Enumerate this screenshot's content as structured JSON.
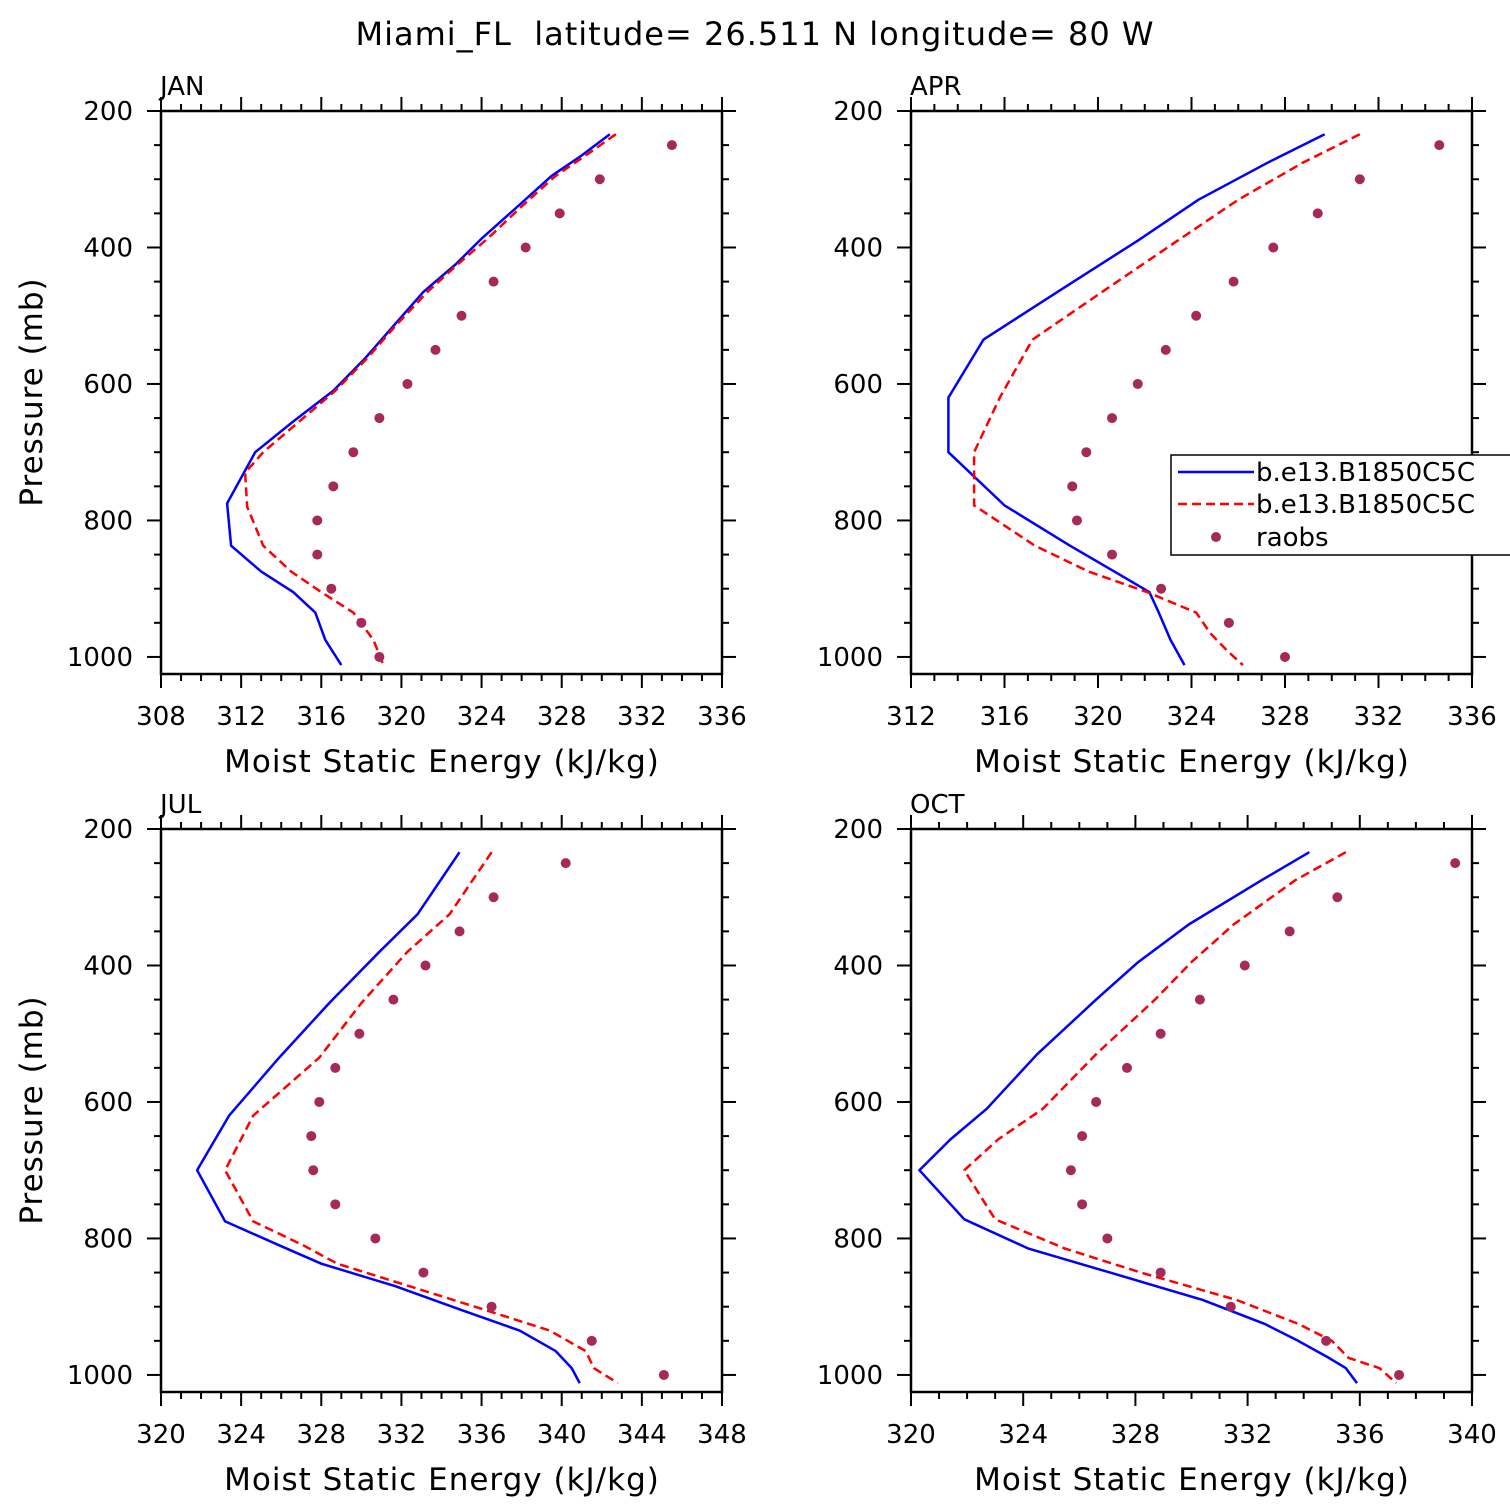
{
  "title": "Miami_FL  latitude= 26.511 N longitude= 80 W",
  "colors": {
    "model1": "#0000ff",
    "model2": "#ff0000",
    "raobs": "#a52a5a",
    "frame": "#000000"
  },
  "legend": {
    "entries": [
      {
        "label": "b.e13.B1850C5C",
        "style": "solid",
        "color": "#0000ff"
      },
      {
        "label": "b.e13.B1850C5C",
        "style": "dashed",
        "color": "#ff0000"
      },
      {
        "label": "raobs",
        "style": "dot",
        "color": "#a52a5a"
      }
    ],
    "placement": "inside-right (APR panel)"
  },
  "chart_data": [
    {
      "type": "line",
      "panel": "JAN",
      "xlabel": "Moist Static Energy (kJ/kg)",
      "ylabel": "Pressure (mb)",
      "xlim": [
        308,
        336
      ],
      "ylim": [
        1025,
        200
      ],
      "xticks": [
        308,
        312,
        316,
        320,
        324,
        328,
        332,
        336
      ],
      "yticks": [
        200,
        400,
        600,
        800,
        1000
      ],
      "grid": false,
      "series": [
        {
          "style": "solid",
          "x": [
            330.4,
            329.0,
            327.5,
            325.8,
            324.0,
            322.7,
            321.1,
            319.6,
            318.2,
            316.6,
            314.6,
            312.7,
            311.3,
            311.5,
            313.0,
            314.6,
            315.7,
            316.2,
            317.0
          ],
          "y": [
            234,
            265,
            295,
            340,
            387,
            425,
            465,
            515,
            562,
            610,
            655,
            700,
            775,
            837,
            875,
            905,
            935,
            975,
            1012
          ]
        },
        {
          "style": "dashed",
          "x": [
            330.7,
            329.2,
            327.7,
            326.0,
            324.3,
            322.8,
            321.3,
            319.7,
            318.3,
            316.7,
            314.9,
            313.1,
            312.2,
            312.3,
            313.1,
            314.5,
            316.0,
            317.6,
            318.6,
            319.1
          ],
          "y": [
            234,
            265,
            295,
            340,
            387,
            425,
            465,
            515,
            562,
            610,
            655,
            700,
            730,
            780,
            837,
            875,
            905,
            935,
            975,
            1012
          ]
        },
        {
          "style": "dot",
          "x": [
            333.5,
            329.9,
            327.9,
            326.2,
            324.6,
            323.0,
            321.7,
            320.3,
            318.9,
            317.6,
            316.6,
            315.8,
            315.8,
            316.5,
            318.0,
            318.9
          ],
          "y": [
            250,
            300,
            350,
            400,
            450,
            500,
            550,
            600,
            650,
            700,
            750,
            800,
            850,
            900,
            950,
            1000
          ]
        }
      ]
    },
    {
      "type": "line",
      "panel": "APR",
      "xlabel": "Moist Static Energy (kJ/kg)",
      "ylabel": "",
      "xlim": [
        312,
        336
      ],
      "ylim": [
        1025,
        200
      ],
      "xticks": [
        312,
        316,
        320,
        324,
        328,
        332,
        336
      ],
      "yticks": [
        200,
        400,
        600,
        800,
        1000
      ],
      "grid": false,
      "series": [
        {
          "style": "solid",
          "x": [
            329.7,
            327.3,
            324.3,
            321.7,
            318.5,
            315.1,
            313.6,
            313.6,
            316.0,
            318.8,
            320.7,
            322.2,
            322.6,
            323.1,
            323.7
          ],
          "y": [
            234,
            275,
            330,
            390,
            460,
            535,
            620,
            700,
            778,
            837,
            875,
            905,
            935,
            975,
            1012
          ]
        },
        {
          "style": "dashed",
          "x": [
            331.2,
            328.8,
            326.0,
            323.4,
            320.4,
            317.2,
            315.8,
            314.7,
            314.7,
            317.3,
            319.6,
            322.1,
            324.2,
            324.8,
            325.5,
            326.2
          ],
          "y": [
            234,
            275,
            330,
            390,
            460,
            535,
            620,
            700,
            778,
            837,
            875,
            905,
            935,
            965,
            990,
            1012
          ]
        },
        {
          "style": "dot",
          "x": [
            334.6,
            331.2,
            329.4,
            327.5,
            325.8,
            324.2,
            322.9,
            321.7,
            320.6,
            319.5,
            318.9,
            319.1,
            320.6,
            322.7,
            325.6,
            328.0
          ],
          "y": [
            250,
            300,
            350,
            400,
            450,
            500,
            550,
            600,
            650,
            700,
            750,
            800,
            850,
            900,
            950,
            1000
          ]
        }
      ]
    },
    {
      "type": "line",
      "panel": "JUL",
      "xlabel": "Moist Static Energy (kJ/kg)",
      "ylabel": "Pressure (mb)",
      "xlim": [
        320,
        348
      ],
      "ylim": [
        1025,
        200
      ],
      "xticks": [
        320,
        324,
        328,
        332,
        336,
        340,
        344,
        348
      ],
      "yticks": [
        200,
        400,
        600,
        800,
        1000
      ],
      "grid": false,
      "series": [
        {
          "style": "solid",
          "x": [
            334.9,
            332.8,
            330.9,
            328.4,
            325.9,
            323.4,
            321.8,
            323.2,
            325.9,
            328.0,
            331.7,
            335.0,
            337.9,
            339.7,
            340.5,
            340.9
          ],
          "y": [
            234,
            325,
            380,
            455,
            535,
            620,
            700,
            775,
            810,
            837,
            870,
            905,
            935,
            965,
            990,
            1012
          ]
        },
        {
          "style": "dashed",
          "x": [
            336.5,
            334.4,
            332.3,
            330.0,
            327.9,
            324.6,
            323.2,
            324.6,
            327.1,
            328.8,
            332.4,
            336.2,
            339.4,
            341.2,
            341.6,
            342.8
          ],
          "y": [
            234,
            325,
            380,
            455,
            535,
            620,
            700,
            775,
            810,
            837,
            870,
            905,
            935,
            965,
            990,
            1012
          ]
        },
        {
          "style": "dot",
          "x": [
            340.2,
            336.6,
            334.9,
            333.2,
            331.6,
            329.9,
            328.7,
            327.9,
            327.5,
            327.6,
            328.7,
            330.7,
            333.1,
            336.5,
            341.5,
            345.1
          ],
          "y": [
            250,
            300,
            350,
            400,
            450,
            500,
            550,
            600,
            650,
            700,
            750,
            800,
            850,
            900,
            950,
            1000
          ]
        }
      ]
    },
    {
      "type": "line",
      "panel": "OCT",
      "xlabel": "Moist Static Energy (kJ/kg)",
      "ylabel": "",
      "xlim": [
        320,
        340
      ],
      "ylim": [
        1025,
        200
      ],
      "xticks": [
        320,
        324,
        328,
        332,
        336,
        340
      ],
      "yticks": [
        200,
        400,
        600,
        800,
        1000
      ],
      "grid": false,
      "series": [
        {
          "style": "solid",
          "x": [
            334.2,
            332.5,
            329.9,
            328.1,
            326.6,
            324.5,
            322.7,
            321.4,
            320.3,
            321.9,
            324.2,
            327.1,
            330.4,
            332.6,
            333.8,
            334.9,
            335.5,
            335.9
          ],
          "y": [
            234,
            275,
            340,
            395,
            450,
            530,
            610,
            655,
            700,
            772,
            815,
            850,
            890,
            925,
            950,
            975,
            990,
            1012
          ]
        },
        {
          "style": "dashed",
          "x": [
            335.5,
            333.7,
            331.5,
            330.0,
            328.7,
            326.6,
            324.7,
            323.1,
            321.9,
            323.0,
            325.5,
            328.2,
            331.6,
            333.8,
            335.0,
            335.6,
            336.7,
            337.3
          ],
          "y": [
            234,
            275,
            340,
            395,
            450,
            530,
            610,
            655,
            700,
            772,
            815,
            850,
            890,
            925,
            950,
            975,
            990,
            1012
          ]
        },
        {
          "style": "dot",
          "x": [
            339.4,
            335.2,
            333.5,
            331.9,
            330.3,
            328.9,
            327.7,
            326.6,
            326.1,
            325.7,
            326.1,
            327.0,
            328.9,
            331.4,
            334.8,
            337.4
          ],
          "y": [
            250,
            300,
            350,
            400,
            450,
            500,
            550,
            600,
            650,
            700,
            750,
            800,
            850,
            900,
            950,
            1000
          ]
        }
      ]
    }
  ]
}
